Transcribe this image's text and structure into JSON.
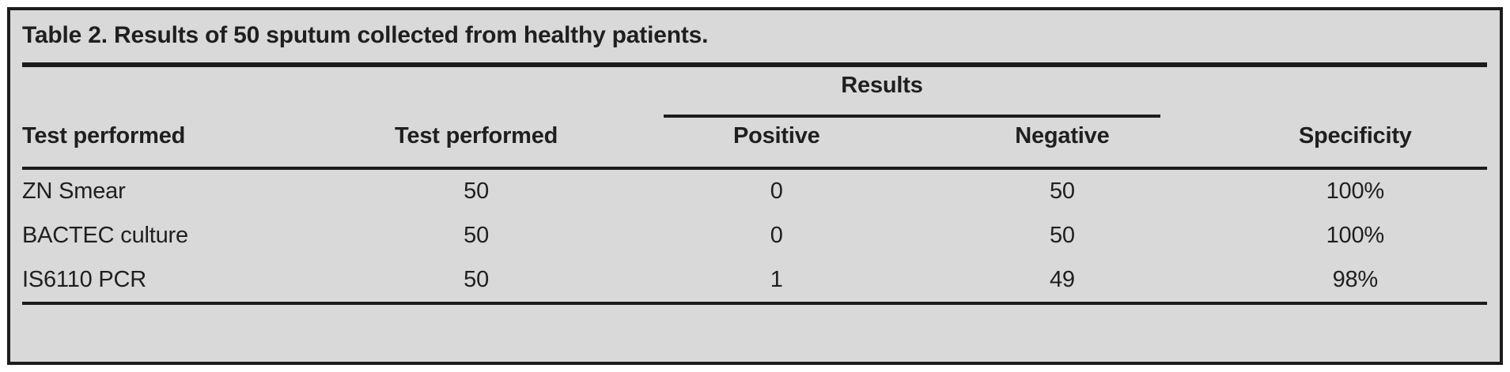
{
  "colors": {
    "page_background": "#ffffff",
    "panel_background": "#d9d9d9",
    "rule_color": "#1c1c1e",
    "text_color": "#1f1f1f"
  },
  "table": {
    "title": "Table 2. Results of 50 sputum collected from healthy patients.",
    "group_header": "Results",
    "columns": [
      "Test performed",
      "Test performed",
      "Positive",
      "Negative",
      "Specificity"
    ],
    "rows": [
      [
        "ZN Smear",
        "50",
        "0",
        "50",
        "100%"
      ],
      [
        "BACTEC culture",
        "50",
        "0",
        "50",
        "100%"
      ],
      [
        "IS6110 PCR",
        "50",
        "1",
        "49",
        "98%"
      ]
    ]
  },
  "chart_data": {
    "type": "table",
    "title": "Table 2. Results of 50 sputum collected from healthy patients.",
    "column_groups": [
      {
        "label": "Results",
        "spans": [
          "Positive",
          "Negative"
        ]
      }
    ],
    "columns": [
      "Test performed",
      "Test performed",
      "Positive",
      "Negative",
      "Specificity"
    ],
    "rows": [
      [
        "ZN Smear",
        50,
        0,
        50,
        "100%"
      ],
      [
        "BACTEC culture",
        50,
        0,
        50,
        "100%"
      ],
      [
        "IS6110 PCR",
        50,
        1,
        49,
        "98%"
      ]
    ]
  }
}
